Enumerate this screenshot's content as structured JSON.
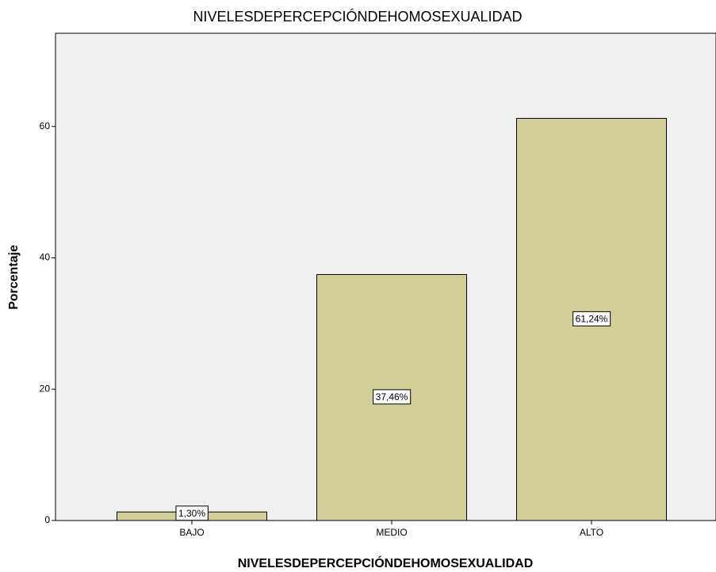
{
  "chart_data": {
    "type": "bar",
    "title": "NIVELESDEPERCEPCIÓNDEHOMOSEXUALIDAD",
    "x_label": "NIVELESDEPERCEPCIÓNDEHOMOSEXUALIDAD",
    "y_label": "Porcentaje",
    "categories": [
      "BAJO",
      "MEDIO",
      "ALTO"
    ],
    "values": [
      1.3,
      37.46,
      61.24
    ],
    "value_labels": [
      "1,30%",
      "37,46%",
      "61,24%"
    ],
    "color": "#d3ce97",
    "ylim": [
      0,
      74.2
    ],
    "yticks": [
      0,
      20,
      40,
      60
    ],
    "grid": false
  }
}
